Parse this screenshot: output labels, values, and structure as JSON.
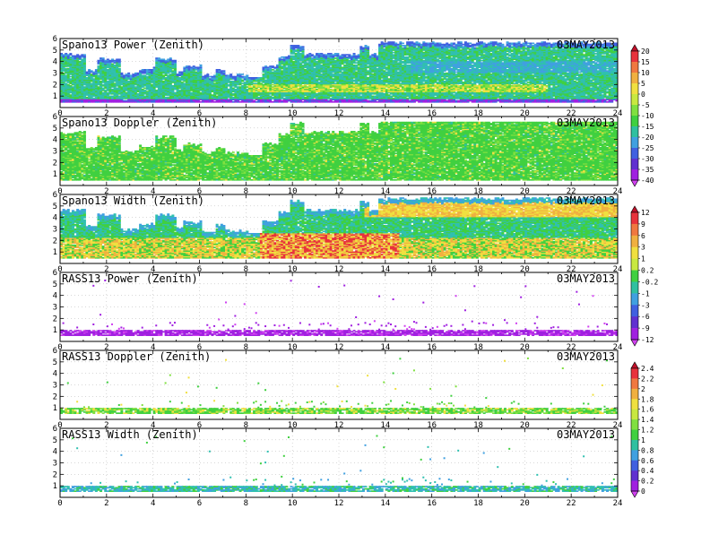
{
  "chart_data": [
    {
      "type": "heatmap",
      "title": "Spano13 Power (Zenith)",
      "date": "03MAY2013",
      "x_ticks": [
        "0",
        "2",
        "4",
        "6",
        "8",
        "10",
        "12",
        "14",
        "16",
        "18",
        "20",
        "22",
        "24"
      ],
      "y_ticks": [
        "1",
        "2",
        "3",
        "4",
        "5",
        "6"
      ],
      "xlim": [
        0,
        24
      ],
      "ylim": [
        0,
        6
      ],
      "colorbar": "power"
    },
    {
      "type": "heatmap",
      "title": "Spano13 Doppler (Zenith)",
      "date": "03MAY2013",
      "x_ticks": [
        "0",
        "2",
        "4",
        "6",
        "8",
        "10",
        "12",
        "14",
        "16",
        "18",
        "20",
        "22",
        "24"
      ],
      "y_ticks": [
        "1",
        "2",
        "3",
        "4",
        "5",
        "6"
      ],
      "xlim": [
        0,
        24
      ],
      "ylim": [
        0,
        6
      ],
      "colorbar": "power"
    },
    {
      "type": "heatmap",
      "title": "Spano13 Width (Zenith)",
      "date": "03MAY2013",
      "x_ticks": [
        "0",
        "2",
        "4",
        "6",
        "8",
        "10",
        "12",
        "14",
        "16",
        "18",
        "20",
        "22",
        "24"
      ],
      "y_ticks": [
        "1",
        "2",
        "3",
        "4",
        "5",
        "6"
      ],
      "xlim": [
        0,
        24
      ],
      "ylim": [
        0,
        6
      ],
      "colorbar": "doppler"
    },
    {
      "type": "heatmap",
      "title": "RASS13 Power (Zenith)",
      "date": "03MAY2013",
      "x_ticks": [
        "0",
        "2",
        "4",
        "6",
        "8",
        "10",
        "12",
        "14",
        "16",
        "18",
        "20",
        "22",
        "24"
      ],
      "y_ticks": [
        "1",
        "2",
        "3",
        "4",
        "5",
        "6"
      ],
      "xlim": [
        0,
        24
      ],
      "ylim": [
        0,
        6
      ],
      "colorbar": "doppler"
    },
    {
      "type": "heatmap",
      "title": "RASS13 Doppler (Zenith)",
      "date": "03MAY2013",
      "x_ticks": [
        "0",
        "2",
        "4",
        "6",
        "8",
        "10",
        "12",
        "14",
        "16",
        "18",
        "20",
        "22",
        "24"
      ],
      "y_ticks": [
        "1",
        "2",
        "3",
        "4",
        "5",
        "6"
      ],
      "xlim": [
        0,
        24
      ],
      "ylim": [
        0,
        6
      ],
      "colorbar": "width"
    },
    {
      "type": "heatmap",
      "title": "RASS13 Width (Zenith)",
      "date": "03MAY2013",
      "x_ticks": [
        "0",
        "2",
        "4",
        "6",
        "8",
        "10",
        "12",
        "14",
        "16",
        "18",
        "20",
        "22",
        "24"
      ],
      "y_ticks": [
        "1",
        "2",
        "3",
        "4",
        "5",
        "6"
      ],
      "xlim": [
        0,
        24
      ],
      "ylim": [
        0,
        6
      ],
      "colorbar": "width"
    }
  ],
  "colorbars": {
    "power": {
      "labels": [
        "20",
        "15",
        "10",
        "5",
        "0",
        "-5",
        "-10",
        "-15",
        "-20",
        "-25",
        "-30",
        "-35",
        "-40"
      ],
      "colors": [
        "#c0102a",
        "#e8323c",
        "#f07840",
        "#f0b040",
        "#f0e040",
        "#c8e840",
        "#80e040",
        "#40d040",
        "#30c0a0",
        "#40a0e0",
        "#4060e0",
        "#6030d0",
        "#a020e0",
        "#d040f0"
      ]
    },
    "doppler": {
      "labels": [
        "12",
        "9",
        "6",
        "3",
        "1",
        "0.2",
        "-0.2",
        "-1",
        "-3",
        "-6",
        "-9",
        "-12"
      ],
      "colors": [
        "#c0102a",
        "#e8323c",
        "#f07840",
        "#f0b040",
        "#f0e040",
        "#c8e840",
        "#40d040",
        "#30c0a0",
        "#40a0e0",
        "#4060e0",
        "#6030d0",
        "#a020e0",
        "#d040f0"
      ]
    },
    "width": {
      "labels": [
        "2.4",
        "2.2",
        "2",
        "1.8",
        "1.6",
        "1.4",
        "1.2",
        "1",
        "0.8",
        "0.6",
        "0.4",
        "0.2",
        "0"
      ],
      "colors": [
        "#c0102a",
        "#e8323c",
        "#f07840",
        "#f0b040",
        "#f0e040",
        "#c8e840",
        "#80e040",
        "#40d040",
        "#30c0a0",
        "#40a0e0",
        "#4060e0",
        "#6030d0",
        "#a020e0",
        "#d040f0"
      ]
    }
  }
}
